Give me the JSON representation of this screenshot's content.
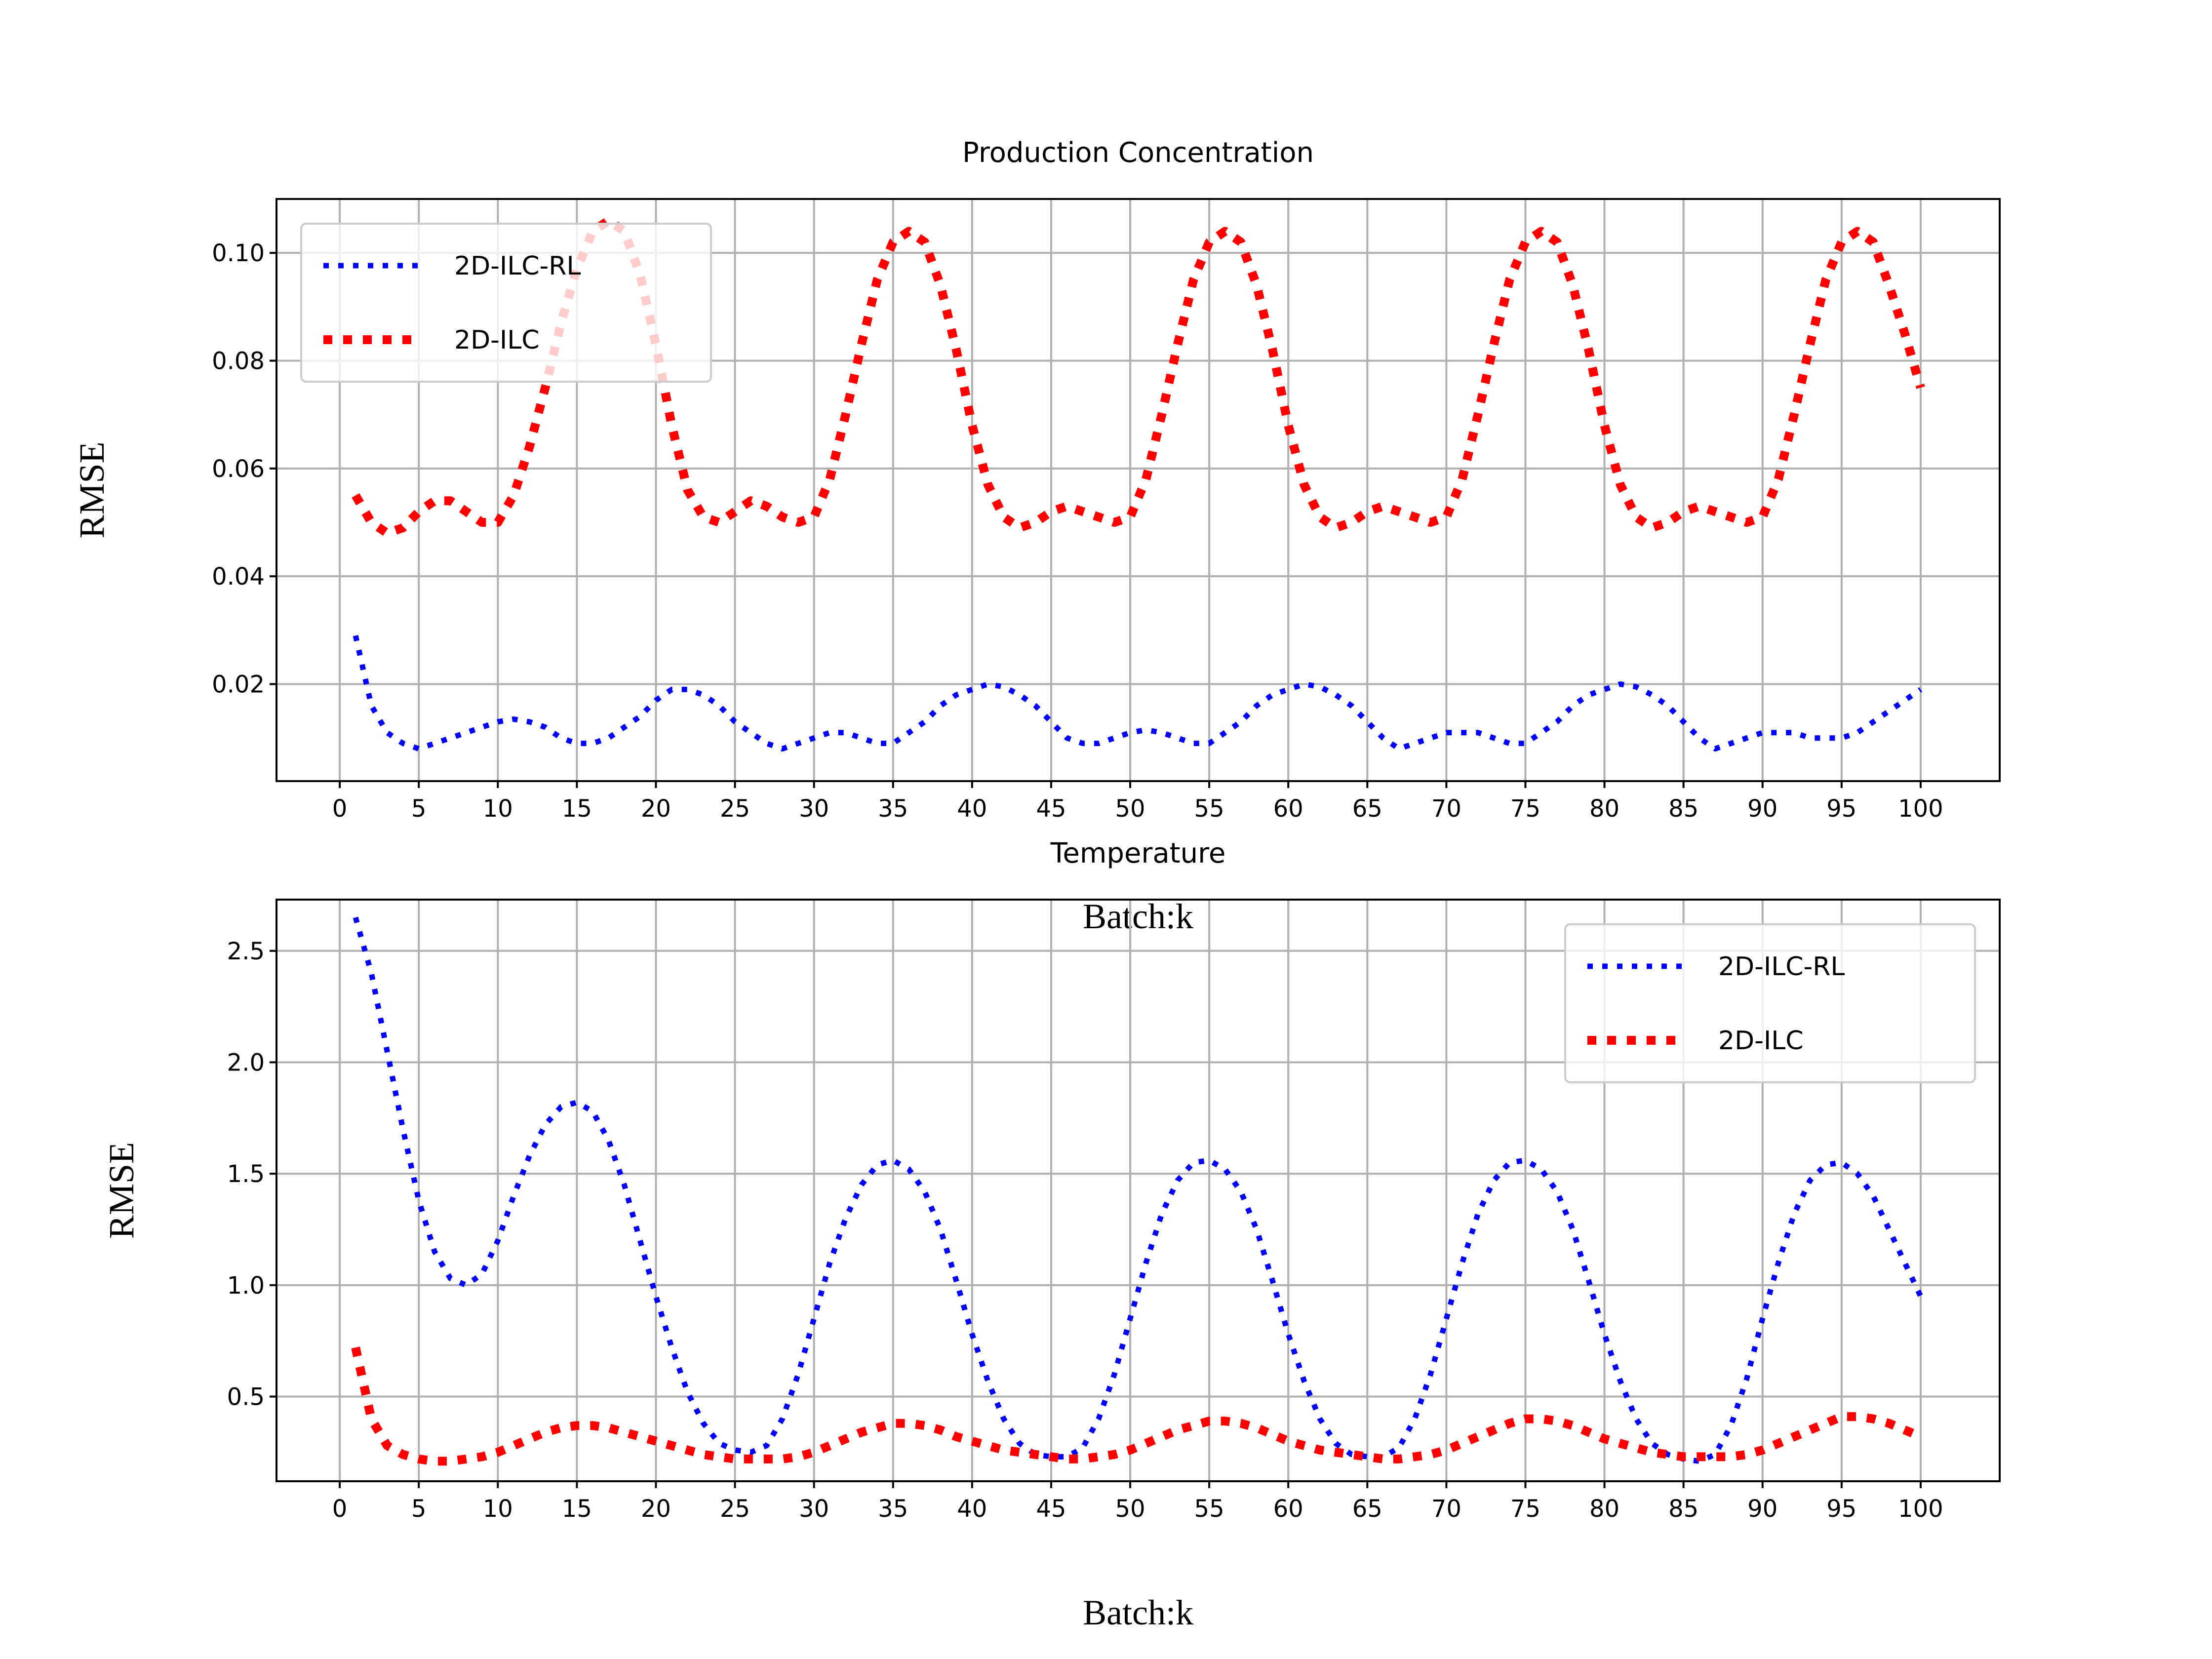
{
  "chart_data": [
    {
      "type": "line",
      "title": "Production Concentration",
      "xlabel": "Batch:k",
      "ylabel": "RMSE",
      "xlim": [
        -4,
        105
      ],
      "ylim": [
        0.002,
        0.11
      ],
      "xticks": [
        0,
        5,
        10,
        15,
        20,
        25,
        30,
        35,
        40,
        45,
        50,
        55,
        60,
        65,
        70,
        75,
        80,
        85,
        90,
        95,
        100
      ],
      "yticks": [
        0.02,
        0.04,
        0.06,
        0.08,
        0.1
      ],
      "ytick_labels": [
        "0.02",
        "0.04",
        "0.06",
        "0.08",
        "0.10"
      ],
      "grid": true,
      "legend_position": "upper-left",
      "series": [
        {
          "name": "2D-ILC-RL",
          "color": "#0000ff",
          "style": "dotted",
          "x": [
            1,
            2,
            3,
            4,
            5,
            6,
            7,
            8,
            9,
            10,
            11,
            12,
            13,
            14,
            15,
            16,
            17,
            18,
            19,
            20,
            21,
            22,
            23,
            24,
            25,
            26,
            27,
            28,
            29,
            30,
            31,
            32,
            33,
            34,
            35,
            36,
            37,
            38,
            39,
            40,
            41,
            42,
            43,
            44,
            45,
            46,
            47,
            48,
            49,
            50,
            51,
            52,
            53,
            54,
            55,
            56,
            57,
            58,
            59,
            60,
            61,
            62,
            63,
            64,
            65,
            66,
            67,
            68,
            69,
            70,
            71,
            72,
            73,
            74,
            75,
            76,
            77,
            78,
            79,
            80,
            81,
            82,
            83,
            84,
            85,
            86,
            87,
            88,
            89,
            90,
            91,
            92,
            93,
            94,
            95,
            96,
            97,
            98,
            99,
            100
          ],
          "y": [
            0.029,
            0.016,
            0.011,
            0.009,
            0.008,
            0.009,
            0.01,
            0.011,
            0.012,
            0.013,
            0.0135,
            0.013,
            0.012,
            0.01,
            0.009,
            0.009,
            0.01,
            0.012,
            0.014,
            0.017,
            0.019,
            0.019,
            0.018,
            0.016,
            0.013,
            0.011,
            0.009,
            0.008,
            0.009,
            0.01,
            0.011,
            0.011,
            0.01,
            0.009,
            0.009,
            0.011,
            0.013,
            0.016,
            0.018,
            0.019,
            0.02,
            0.0195,
            0.018,
            0.016,
            0.013,
            0.01,
            0.009,
            0.009,
            0.01,
            0.011,
            0.0115,
            0.011,
            0.01,
            0.009,
            0.009,
            0.011,
            0.013,
            0.016,
            0.018,
            0.019,
            0.02,
            0.0195,
            0.018,
            0.016,
            0.013,
            0.01,
            0.008,
            0.009,
            0.01,
            0.011,
            0.011,
            0.011,
            0.01,
            0.009,
            0.009,
            0.011,
            0.013,
            0.016,
            0.018,
            0.019,
            0.02,
            0.0195,
            0.018,
            0.016,
            0.013,
            0.01,
            0.008,
            0.009,
            0.01,
            0.011,
            0.011,
            0.011,
            0.01,
            0.01,
            0.01,
            0.011,
            0.013,
            0.015,
            0.017,
            0.019
          ]
        },
        {
          "name": "2D-ILC",
          "color": "#ff0000",
          "style": "dotted",
          "x": [
            1,
            2,
            3,
            4,
            5,
            6,
            7,
            8,
            9,
            10,
            11,
            12,
            13,
            14,
            15,
            16,
            17,
            18,
            19,
            20,
            21,
            22,
            23,
            24,
            25,
            26,
            27,
            28,
            29,
            30,
            31,
            32,
            33,
            34,
            35,
            36,
            37,
            38,
            39,
            40,
            41,
            42,
            43,
            44,
            45,
            46,
            47,
            48,
            49,
            50,
            51,
            52,
            53,
            54,
            55,
            56,
            57,
            58,
            59,
            60,
            61,
            62,
            63,
            64,
            65,
            66,
            67,
            68,
            69,
            70,
            71,
            72,
            73,
            74,
            75,
            76,
            77,
            78,
            79,
            80,
            81,
            82,
            83,
            84,
            85,
            86,
            87,
            88,
            89,
            90,
            91,
            92,
            93,
            94,
            95,
            96,
            97,
            98,
            99,
            100
          ],
          "y": [
            0.055,
            0.05,
            0.048,
            0.049,
            0.052,
            0.054,
            0.054,
            0.052,
            0.05,
            0.05,
            0.055,
            0.064,
            0.075,
            0.087,
            0.097,
            0.104,
            0.106,
            0.104,
            0.096,
            0.083,
            0.068,
            0.056,
            0.051,
            0.05,
            0.052,
            0.054,
            0.053,
            0.051,
            0.05,
            0.051,
            0.058,
            0.07,
            0.083,
            0.095,
            0.102,
            0.104,
            0.102,
            0.094,
            0.082,
            0.068,
            0.057,
            0.051,
            0.049,
            0.05,
            0.052,
            0.053,
            0.052,
            0.051,
            0.05,
            0.051,
            0.058,
            0.07,
            0.083,
            0.095,
            0.102,
            0.104,
            0.102,
            0.094,
            0.082,
            0.068,
            0.057,
            0.051,
            0.049,
            0.05,
            0.052,
            0.053,
            0.052,
            0.051,
            0.05,
            0.051,
            0.058,
            0.07,
            0.083,
            0.095,
            0.102,
            0.104,
            0.102,
            0.094,
            0.082,
            0.068,
            0.057,
            0.051,
            0.049,
            0.05,
            0.052,
            0.053,
            0.052,
            0.051,
            0.05,
            0.051,
            0.058,
            0.07,
            0.083,
            0.095,
            0.102,
            0.104,
            0.102,
            0.094,
            0.085,
            0.075
          ]
        }
      ]
    },
    {
      "type": "line",
      "title": "Temperature",
      "xlabel": "Batch:k",
      "ylabel": "RMSE",
      "xlim": [
        -4,
        105
      ],
      "ylim": [
        0.12,
        2.73
      ],
      "xticks": [
        0,
        5,
        10,
        15,
        20,
        25,
        30,
        35,
        40,
        45,
        50,
        55,
        60,
        65,
        70,
        75,
        80,
        85,
        90,
        95,
        100
      ],
      "yticks": [
        0.5,
        1.0,
        1.5,
        2.0,
        2.5
      ],
      "ytick_labels": [
        "0.5",
        "1.0",
        "1.5",
        "2.0",
        "2.5"
      ],
      "grid": true,
      "legend_position": "upper-right",
      "series": [
        {
          "name": "2D-ILC-RL",
          "color": "#0000ff",
          "style": "dotted",
          "x": [
            1,
            2,
            3,
            4,
            5,
            6,
            7,
            8,
            9,
            10,
            11,
            12,
            13,
            14,
            15,
            16,
            17,
            18,
            19,
            20,
            21,
            22,
            23,
            24,
            25,
            26,
            27,
            28,
            29,
            30,
            31,
            32,
            33,
            34,
            35,
            36,
            37,
            38,
            39,
            40,
            41,
            42,
            43,
            44,
            45,
            46,
            47,
            48,
            49,
            50,
            51,
            52,
            53,
            54,
            55,
            56,
            57,
            58,
            59,
            60,
            61,
            62,
            63,
            64,
            65,
            66,
            67,
            68,
            69,
            70,
            71,
            72,
            73,
            74,
            75,
            76,
            77,
            78,
            79,
            80,
            81,
            82,
            83,
            84,
            85,
            86,
            87,
            88,
            89,
            90,
            91,
            92,
            93,
            94,
            95,
            96,
            97,
            98,
            99,
            100
          ],
          "y": [
            2.65,
            2.4,
            2.05,
            1.7,
            1.38,
            1.15,
            1.03,
            1.0,
            1.05,
            1.2,
            1.4,
            1.58,
            1.72,
            1.8,
            1.82,
            1.78,
            1.65,
            1.45,
            1.2,
            0.95,
            0.72,
            0.52,
            0.38,
            0.29,
            0.26,
            0.25,
            0.28,
            0.4,
            0.6,
            0.85,
            1.1,
            1.3,
            1.45,
            1.54,
            1.56,
            1.52,
            1.42,
            1.25,
            1.02,
            0.78,
            0.57,
            0.4,
            0.29,
            0.24,
            0.23,
            0.23,
            0.27,
            0.4,
            0.6,
            0.85,
            1.1,
            1.32,
            1.47,
            1.55,
            1.56,
            1.52,
            1.42,
            1.25,
            1.02,
            0.78,
            0.57,
            0.4,
            0.29,
            0.24,
            0.23,
            0.23,
            0.27,
            0.4,
            0.6,
            0.85,
            1.1,
            1.32,
            1.47,
            1.55,
            1.56,
            1.52,
            1.42,
            1.25,
            1.02,
            0.78,
            0.57,
            0.4,
            0.29,
            0.24,
            0.22,
            0.21,
            0.24,
            0.37,
            0.58,
            0.85,
            1.1,
            1.32,
            1.47,
            1.54,
            1.55,
            1.5,
            1.4,
            1.25,
            1.1,
            0.95
          ]
        },
        {
          "name": "2D-ILC",
          "color": "#ff0000",
          "style": "dotted",
          "x": [
            1,
            2,
            3,
            4,
            5,
            6,
            7,
            8,
            9,
            10,
            11,
            12,
            13,
            14,
            15,
            16,
            17,
            18,
            19,
            20,
            21,
            22,
            23,
            24,
            25,
            26,
            27,
            28,
            29,
            30,
            31,
            32,
            33,
            34,
            35,
            36,
            37,
            38,
            39,
            40,
            41,
            42,
            43,
            44,
            45,
            46,
            47,
            48,
            49,
            50,
            51,
            52,
            53,
            54,
            55,
            56,
            57,
            58,
            59,
            60,
            61,
            62,
            63,
            64,
            65,
            66,
            67,
            68,
            69,
            70,
            71,
            72,
            73,
            74,
            75,
            76,
            77,
            78,
            79,
            80,
            81,
            82,
            83,
            84,
            85,
            86,
            87,
            88,
            89,
            90,
            91,
            92,
            93,
            94,
            95,
            96,
            97,
            98,
            99,
            100
          ],
          "y": [
            0.72,
            0.4,
            0.28,
            0.24,
            0.22,
            0.21,
            0.21,
            0.22,
            0.23,
            0.25,
            0.28,
            0.31,
            0.34,
            0.36,
            0.37,
            0.37,
            0.36,
            0.34,
            0.32,
            0.3,
            0.28,
            0.26,
            0.24,
            0.23,
            0.22,
            0.22,
            0.22,
            0.22,
            0.23,
            0.25,
            0.28,
            0.31,
            0.34,
            0.36,
            0.38,
            0.38,
            0.37,
            0.35,
            0.32,
            0.3,
            0.28,
            0.26,
            0.25,
            0.24,
            0.23,
            0.22,
            0.22,
            0.23,
            0.24,
            0.26,
            0.29,
            0.32,
            0.35,
            0.37,
            0.39,
            0.39,
            0.38,
            0.36,
            0.33,
            0.3,
            0.28,
            0.26,
            0.25,
            0.24,
            0.23,
            0.22,
            0.22,
            0.23,
            0.24,
            0.26,
            0.29,
            0.32,
            0.35,
            0.38,
            0.4,
            0.4,
            0.39,
            0.37,
            0.34,
            0.31,
            0.29,
            0.27,
            0.25,
            0.24,
            0.23,
            0.23,
            0.23,
            0.23,
            0.24,
            0.26,
            0.29,
            0.32,
            0.35,
            0.38,
            0.41,
            0.41,
            0.4,
            0.38,
            0.35,
            0.32
          ]
        }
      ]
    }
  ]
}
